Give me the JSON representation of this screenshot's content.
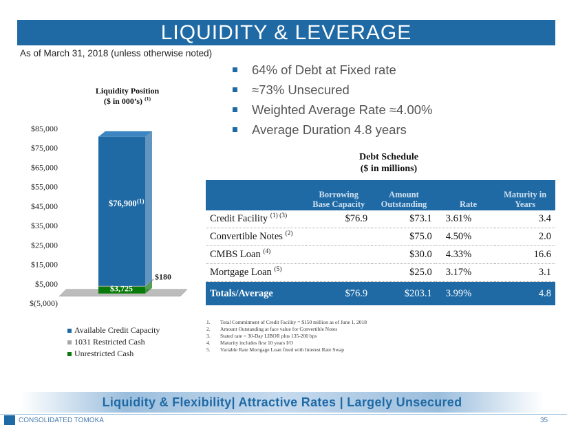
{
  "header": {
    "title": "LIQUIDITY & LEVERAGE"
  },
  "as_of": "As of March 31, 2018 (unless otherwise noted)",
  "bullets": [
    "64% of Debt at Fixed rate",
    "≈73% Unsecured",
    "Weighted Average Rate ≈4.00%",
    "Average Duration 4.8 years"
  ],
  "chart_data": {
    "type": "bar",
    "title": "Liquidity Position",
    "subtitle": "($ in 000’s)",
    "subtitle_note": "(1)",
    "stacked": true,
    "categories": [
      ""
    ],
    "ylim": [
      -5000,
      85000
    ],
    "yticks": [
      "$(5,000)",
      "$5,000",
      "$15,000",
      "$25,000",
      "$35,000",
      "$45,000",
      "$55,000",
      "$65,000",
      "$75,000",
      "$85,000"
    ],
    "series": [
      {
        "name": "Available Credit Capacity",
        "values": [
          76900
        ],
        "label": "$76,900",
        "label_note": "(1)",
        "color": "#1f6aa5"
      },
      {
        "name": "1031 Restricted Cash",
        "values": [
          180
        ],
        "label": "$180",
        "color": "#a6a6a6"
      },
      {
        "name": "Unrestricted Cash",
        "values": [
          3725
        ],
        "label": "$3,725",
        "color": "#0a7a0a"
      }
    ],
    "legend": "bottom"
  },
  "debt_schedule": {
    "title_line1": "Debt Schedule",
    "title_line2": "($ in millions)",
    "headers": [
      "",
      "Borrowing Base Capacity",
      "Amount Outstanding",
      "Rate",
      "Maturity in Years"
    ],
    "rows": [
      {
        "name": "Credit Facility",
        "note": "(1) (3)",
        "capacity": "$76.9",
        "amount": "$73.1",
        "rate": "3.61%",
        "maturity": "3.4"
      },
      {
        "name": "Convertible Notes",
        "note": "(2)",
        "capacity": "",
        "amount": "$75.0",
        "rate": "4.50%",
        "maturity": "2.0"
      },
      {
        "name": "CMBS Loan",
        "note": "(4)",
        "capacity": "",
        "amount": "$30.0",
        "rate": "4.33%",
        "maturity": "16.6"
      },
      {
        "name": "Mortgage Loan",
        "note": "(5)",
        "capacity": "",
        "amount": "$25.0",
        "rate": "3.17%",
        "maturity": "3.1"
      }
    ],
    "total": {
      "name": "Totals/Average",
      "capacity": "$76.9",
      "amount": "$203.1",
      "rate": "3.99%",
      "maturity": "4.8"
    }
  },
  "footnotes": [
    {
      "n": "1.",
      "text": "Total Commitment of Credit Facility = $150 million as of June 1, 2018"
    },
    {
      "n": "2.",
      "text": "Amount Outstanding at face value for Convertible Notes"
    },
    {
      "n": "3.",
      "text": "Stated rate = 30-Day LIBOR plus 135-200 bps"
    },
    {
      "n": "4.",
      "text": "Maturity includes first 10 years I/O"
    },
    {
      "n": "5.",
      "text": "Variable Rate Mortgage Loan fixed with Interest Rate Swap"
    }
  ],
  "banner": "Liquidity & Flexibility| Attractive Rates | Largely Unsecured",
  "footer": {
    "company": "CONSOLIDATED TOMOKA",
    "page": "35"
  },
  "colors": {
    "accent": "#1f6aa5",
    "green": "#0a7a0a",
    "gray": "#a6a6a6"
  }
}
